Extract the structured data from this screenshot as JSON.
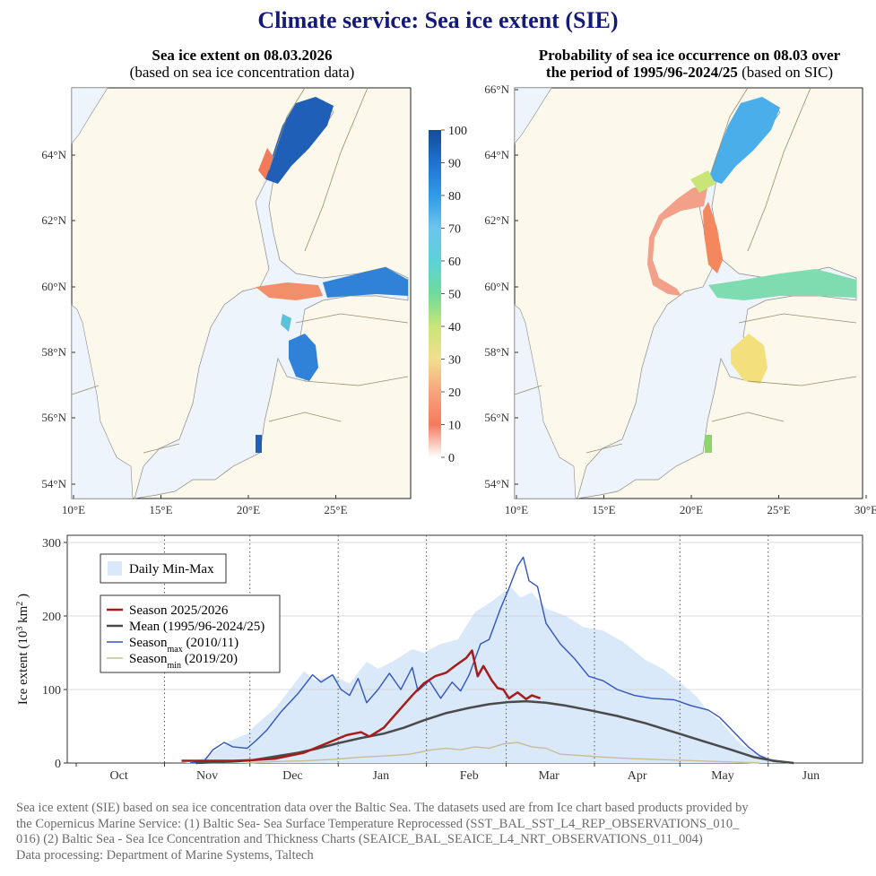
{
  "title": "Climate service: Sea ice extent (SIE)",
  "left_map": {
    "title_line1": "Sea ice extent on 08.03.2026",
    "title_line2": "(based on sea ice concentration data)",
    "lat_labels": [
      "54°N",
      "56°N",
      "58°N",
      "60°N",
      "62°N",
      "64°N"
    ],
    "lon_labels": [
      "10°E",
      "15°E",
      "20°E",
      "25°E"
    ]
  },
  "right_map": {
    "title_line1": "Probability of sea ice occurrence on 08.03 over",
    "title_line2_bold": "the period of 1995/96-2024/25",
    "title_line2_rest": " (based on SIC)",
    "lat_labels": [
      "54°N",
      "56°N",
      "58°N",
      "60°N",
      "62°N",
      "64°N",
      "66°N"
    ],
    "lon_labels": [
      "10°E",
      "15°E",
      "20°E",
      "25°E",
      "30°E"
    ]
  },
  "colorbar": {
    "ticks": [
      "0",
      "10",
      "20",
      "30",
      "40",
      "50",
      "60",
      "70",
      "80",
      "90",
      "100"
    ],
    "colors": [
      "#ffffff",
      "#f47a5e",
      "#f7a47c",
      "#f2df8e",
      "#c9e577",
      "#6edb9b",
      "#5bd3d6",
      "#6cc4ee",
      "#2f9be8",
      "#1f72d0",
      "#134d96"
    ]
  },
  "colors": {
    "land": "#fcf8ec",
    "sea": "#eef4fb",
    "coast": "#8a8a8a",
    "border": "#9b8c6c",
    "title": "#141a7a",
    "season_current": "#a51c1c",
    "mean": "#4a4a4a",
    "season_max": "#3355bb",
    "season_min": "#c8bc96",
    "minmax_band": "#d9e9f9"
  },
  "chart_data": {
    "type": "line",
    "ylabel": "Ice extent (10³ km²)",
    "ylabel_main": "Ice extent (10",
    "ylabel_sup3": "3",
    "ylabel_unit": " km",
    "ylabel_sup2": "2",
    "ylabel_close": " )",
    "ylim": [
      0,
      300
    ],
    "yticks": [
      "0",
      "100",
      "200",
      "300"
    ],
    "x_months": [
      "Oct",
      "Nov",
      "Dec",
      "Jan",
      "Feb",
      "Mar",
      "Apr",
      "May",
      "Jun"
    ],
    "grid": "vertical dotted at month boundaries, horizontal at 100 intervals",
    "legend_box1": "Daily Min-Max",
    "legend": {
      "current_label": "Season 2025/2026",
      "mean_label": "Mean (1995/96-2024/25)",
      "max_label_main": "Season",
      "max_label_sub": "max",
      "max_label_rest": " (2010/11)",
      "min_label_main": "Season",
      "min_label_sub": "min",
      "min_label_rest": " (2019/20)"
    },
    "x_unit": "days since 1 Oct",
    "series": [
      {
        "name": "Season 2025/2026",
        "points": [
          [
            37,
            3
          ],
          [
            45,
            3
          ],
          [
            55,
            3
          ],
          [
            62,
            4
          ],
          [
            70,
            6
          ],
          [
            75,
            10
          ],
          [
            80,
            14
          ],
          [
            85,
            22
          ],
          [
            90,
            30
          ],
          [
            95,
            38
          ],
          [
            100,
            42
          ],
          [
            103,
            36
          ],
          [
            108,
            48
          ],
          [
            113,
            70
          ],
          [
            118,
            92
          ],
          [
            122,
            108
          ],
          [
            126,
            118
          ],
          [
            130,
            123
          ],
          [
            133,
            132
          ],
          [
            137,
            143
          ],
          [
            139,
            153
          ],
          [
            141,
            118
          ],
          [
            143,
            132
          ],
          [
            146,
            112
          ],
          [
            148,
            102
          ],
          [
            150,
            100
          ],
          [
            152,
            88
          ],
          [
            155,
            96
          ],
          [
            158,
            87
          ],
          [
            160,
            92
          ],
          [
            163,
            88
          ]
        ]
      },
      {
        "name": "Mean (1995/96-2024/25)",
        "points": [
          [
            42,
            0
          ],
          [
            55,
            2
          ],
          [
            62,
            4
          ],
          [
            70,
            9
          ],
          [
            78,
            14
          ],
          [
            85,
            20
          ],
          [
            92,
            27
          ],
          [
            100,
            34
          ],
          [
            108,
            40
          ],
          [
            115,
            48
          ],
          [
            122,
            58
          ],
          [
            130,
            68
          ],
          [
            138,
            75
          ],
          [
            145,
            80
          ],
          [
            152,
            83
          ],
          [
            158,
            84
          ],
          [
            165,
            82
          ],
          [
            172,
            78
          ],
          [
            180,
            72
          ],
          [
            190,
            64
          ],
          [
            200,
            54
          ],
          [
            210,
            42
          ],
          [
            220,
            30
          ],
          [
            230,
            18
          ],
          [
            238,
            8
          ],
          [
            245,
            3
          ],
          [
            252,
            0
          ]
        ]
      },
      {
        "name": "Season max (2010/11)",
        "points": [
          [
            40,
            0
          ],
          [
            45,
            3
          ],
          [
            48,
            18
          ],
          [
            52,
            28
          ],
          [
            55,
            22
          ],
          [
            60,
            20
          ],
          [
            63,
            30
          ],
          [
            67,
            45
          ],
          [
            72,
            70
          ],
          [
            78,
            95
          ],
          [
            83,
            120
          ],
          [
            86,
            110
          ],
          [
            90,
            120
          ],
          [
            93,
            100
          ],
          [
            96,
            92
          ],
          [
            99,
            115
          ],
          [
            102,
            82
          ],
          [
            106,
            100
          ],
          [
            110,
            122
          ],
          [
            114,
            100
          ],
          [
            118,
            130
          ],
          [
            120,
            98
          ],
          [
            124,
            112
          ],
          [
            128,
            88
          ],
          [
            132,
            110
          ],
          [
            135,
            98
          ],
          [
            138,
            120
          ],
          [
            142,
            162
          ],
          [
            145,
            168
          ],
          [
            149,
            210
          ],
          [
            152,
            238
          ],
          [
            155,
            268
          ],
          [
            157,
            280
          ],
          [
            159,
            248
          ],
          [
            162,
            240
          ],
          [
            165,
            190
          ],
          [
            170,
            162
          ],
          [
            175,
            142
          ],
          [
            180,
            118
          ],
          [
            185,
            112
          ],
          [
            190,
            100
          ],
          [
            196,
            92
          ],
          [
            202,
            88
          ],
          [
            210,
            86
          ],
          [
            216,
            78
          ],
          [
            222,
            72
          ],
          [
            226,
            62
          ],
          [
            229,
            50
          ],
          [
            232,
            38
          ],
          [
            236,
            22
          ],
          [
            240,
            10
          ],
          [
            245,
            2
          ],
          [
            252,
            0
          ]
        ]
      },
      {
        "name": "Season min (2019/20)",
        "points": [
          [
            60,
            0
          ],
          [
            70,
            2
          ],
          [
            80,
            3
          ],
          [
            90,
            5
          ],
          [
            100,
            8
          ],
          [
            110,
            10
          ],
          [
            117,
            12
          ],
          [
            125,
            18
          ],
          [
            130,
            20
          ],
          [
            135,
            18
          ],
          [
            140,
            22
          ],
          [
            145,
            20
          ],
          [
            150,
            26
          ],
          [
            155,
            28
          ],
          [
            160,
            22
          ],
          [
            165,
            20
          ],
          [
            170,
            12
          ],
          [
            178,
            10
          ],
          [
            185,
            8
          ],
          [
            195,
            6
          ],
          [
            210,
            4
          ],
          [
            225,
            2
          ],
          [
            240,
            0
          ]
        ]
      },
      {
        "name": "Daily Min-Max",
        "lower": [
          [
            0,
            0
          ],
          [
            250,
            0
          ]
        ],
        "upper": [
          [
            38,
            0
          ],
          [
            42,
            2
          ],
          [
            46,
            10
          ],
          [
            50,
            20
          ],
          [
            54,
            30
          ],
          [
            60,
            40
          ],
          [
            64,
            55
          ],
          [
            70,
            75
          ],
          [
            74,
            95
          ],
          [
            80,
            125
          ],
          [
            84,
            112
          ],
          [
            90,
            120
          ],
          [
            96,
            108
          ],
          [
            102,
            138
          ],
          [
            106,
            128
          ],
          [
            112,
            140
          ],
          [
            118,
            155
          ],
          [
            122,
            150
          ],
          [
            128,
            162
          ],
          [
            134,
            168
          ],
          [
            140,
            205
          ],
          [
            146,
            220
          ],
          [
            150,
            232
          ],
          [
            153,
            238
          ],
          [
            156,
            225
          ],
          [
            160,
            232
          ],
          [
            165,
            210
          ],
          [
            172,
            200
          ],
          [
            178,
            185
          ],
          [
            185,
            180
          ],
          [
            192,
            165
          ],
          [
            200,
            140
          ],
          [
            206,
            128
          ],
          [
            212,
            110
          ],
          [
            218,
            90
          ],
          [
            222,
            70
          ],
          [
            226,
            58
          ],
          [
            230,
            40
          ],
          [
            234,
            24
          ],
          [
            238,
            15
          ],
          [
            244,
            6
          ],
          [
            252,
            0
          ]
        ]
      }
    ]
  },
  "footer": {
    "line1": "Sea ice extent (SIE) based on sea ice concentration data over the Baltic Sea. The datasets used are from Ice chart based products provided by",
    "line2": "the Copernicus Marine Service:  (1) Baltic Sea- Sea Surface Temperature Reprocessed (SST_BAL_SST_L4_REP_OBSERVATIONS_010_",
    "line3": "016) (2) Baltic Sea - Sea Ice Concentration and Thickness Charts (SEAICE_BAL_SEAICE_L4_NRT_OBSERVATIONS_011_004)",
    "line4": "Data processing: Department of Marine Systems, Taltech"
  }
}
